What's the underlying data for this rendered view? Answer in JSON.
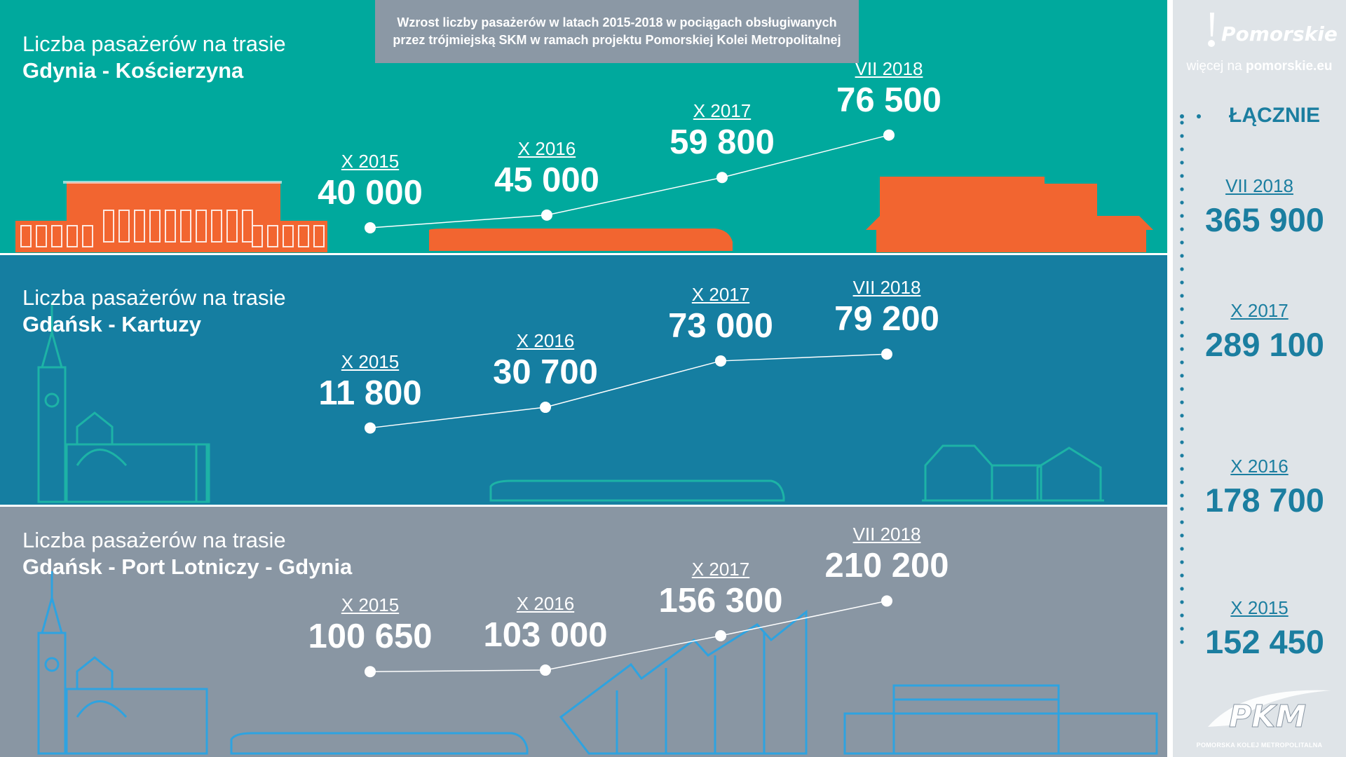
{
  "header": {
    "line1": "Wzrost liczby pasażerów w latach 2015-2018 w pociągach obsługiwanych",
    "line2": "przez trójmiejską SKM w ramach projektu Pomorskiej Kolei Metropolitalnej"
  },
  "route_prefix": "Liczba pasażerów na trasie",
  "colors": {
    "panel1": "#00a99d",
    "panel2": "#157ea1",
    "panel3": "#8996a3",
    "art1": "#f26530",
    "art2": "#1db3a6",
    "art3": "#2ea3e0",
    "accent": "#1b7ea0",
    "sidebar": "#dfe4e8"
  },
  "sidebar": {
    "logo_text": "Pomorskie",
    "more_prefix": "więcej na",
    "more_site": "pomorskie.eu",
    "total_label": "ŁĄCZNIE",
    "pkm_logo": "PKM",
    "pkm_sub": "POMORSKA KOLEJ METROPOLITALNA"
  },
  "chart_data": [
    {
      "type": "line",
      "route": "Gdynia - Kościerzyna",
      "categories": [
        "X 2015",
        "X 2016",
        "X 2017",
        "VII 2018"
      ],
      "values": [
        40000,
        45000,
        59800,
        76500
      ],
      "labels": [
        "40 000",
        "45 000",
        "59 800",
        "76 500"
      ]
    },
    {
      "type": "line",
      "route": "Gdańsk - Kartuzy",
      "categories": [
        "X 2015",
        "X 2016",
        "X 2017",
        "VII 2018"
      ],
      "values": [
        11800,
        30700,
        73000,
        79200
      ],
      "labels": [
        "11 800",
        "30 700",
        "73 000",
        "79 200"
      ]
    },
    {
      "type": "line",
      "route": "Gdańsk - Port Lotniczy - Gdynia",
      "categories": [
        "X 2015",
        "X 2016",
        "X 2017",
        "VII 2018"
      ],
      "values": [
        100650,
        103000,
        156300,
        210200
      ],
      "labels": [
        "100 650",
        "103 000",
        "156 300",
        "210 200"
      ]
    },
    {
      "type": "table",
      "title": "ŁĄCZNIE",
      "categories": [
        "VII 2018",
        "X 2017",
        "X 2016",
        "X 2015"
      ],
      "values": [
        365900,
        289100,
        178700,
        152450
      ],
      "labels": [
        "365 900",
        "289 100",
        "178 700",
        "152 450"
      ]
    }
  ]
}
